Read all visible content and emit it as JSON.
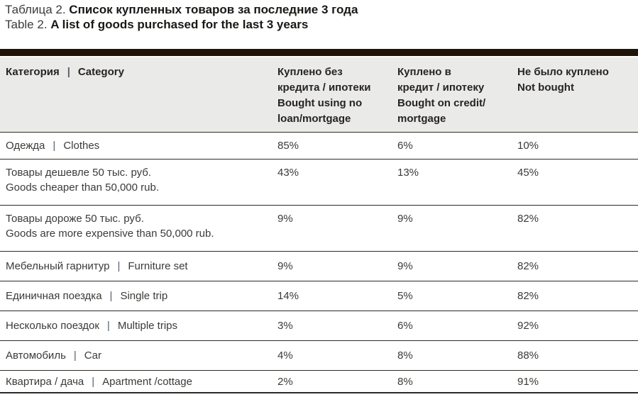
{
  "page": {
    "title": {
      "ru_label": "Таблица 2.",
      "ru_title": "Список купленных товаров за последние 3 года",
      "en_label": "Table 2.",
      "en_title": "A list of goods purchased for the last 3 years"
    }
  },
  "table": {
    "pipe": "|",
    "header": {
      "category": {
        "ru": "Категория",
        "en": "Category"
      },
      "no_loan": {
        "lines": [
          "Куплено без",
          "кредита / ипотеки",
          "Bought using no",
          "loan/mortgage"
        ]
      },
      "credit": {
        "lines": [
          "Куплено в",
          "кредит / ипотеку",
          "Bought on credit/",
          "mortgage"
        ]
      },
      "not_bought": {
        "lines": [
          "Не было куплено",
          "Not bought"
        ]
      }
    },
    "rows": [
      {
        "ru": "Одежда",
        "en": "Clothes",
        "values": [
          "85%",
          "6%",
          "10%"
        ]
      },
      {
        "ru": "Товары дешевле 50 тыс. руб.",
        "en": "Goods cheaper than 50,000 rub.",
        "values": [
          "43%",
          "13%",
          "45%"
        ]
      },
      {
        "ru": "Товары дороже 50 тыс. руб.",
        "en": "Goods are more expensive than 50,000 rub.",
        "values": [
          "9%",
          "9%",
          "82%"
        ]
      },
      {
        "ru": "Мебельный гарнитур",
        "en": "Furniture set",
        "values": [
          "9%",
          "9%",
          "82%"
        ]
      },
      {
        "ru": "Единичная поездка",
        "en": "Single trip",
        "values": [
          "14%",
          "5%",
          "82%"
        ]
      },
      {
        "ru": "Несколько поездок",
        "en": "Multiple trips",
        "values": [
          "3%",
          "6%",
          "92%"
        ]
      },
      {
        "ru": "Автомобиль",
        "en": "Car",
        "values": [
          "4%",
          "8%",
          "88%"
        ]
      },
      {
        "ru": "Квартира / дача",
        "en": "Apartment /cottage",
        "values": [
          "2%",
          "8%",
          "91%"
        ]
      }
    ]
  },
  "colors": {
    "top_rule": "#1f1407",
    "header_bg": "#eaeae8",
    "row_border": "#2e2a26",
    "body_text": "#3a3a38",
    "header_text": "#272420",
    "pipe": "#55606c"
  },
  "chart_data": {
    "type": "table",
    "title": "Таблица 2. Список купленных товаров за последние 3 года / Table 2. A list of goods purchased for the last 3 years",
    "categories": [
      "Одежда | Clothes",
      "Товары дешевле 50 тыс. руб. | Goods cheaper than 50,000 rub.",
      "Товары дороже 50 тыс. руб. | Goods are more expensive than 50,000 rub.",
      "Мебельный гарнитур | Furniture set",
      "Единичная поездка | Single trip",
      "Несколько поездок | Multiple trips",
      "Автомобиль | Car",
      "Квартира / дача | Apartment /cottage"
    ],
    "series": [
      {
        "name": "Куплено без кредита / ипотеки (Bought using no loan/mortgage)",
        "values": [
          85,
          43,
          9,
          9,
          14,
          3,
          4,
          2
        ]
      },
      {
        "name": "Куплено в кредит / ипотеку (Bought on credit/mortgage)",
        "values": [
          6,
          13,
          9,
          9,
          5,
          6,
          8,
          8
        ]
      },
      {
        "name": "Не было куплено (Not bought)",
        "values": [
          10,
          45,
          82,
          82,
          82,
          92,
          88,
          91
        ]
      }
    ],
    "unit": "%"
  }
}
